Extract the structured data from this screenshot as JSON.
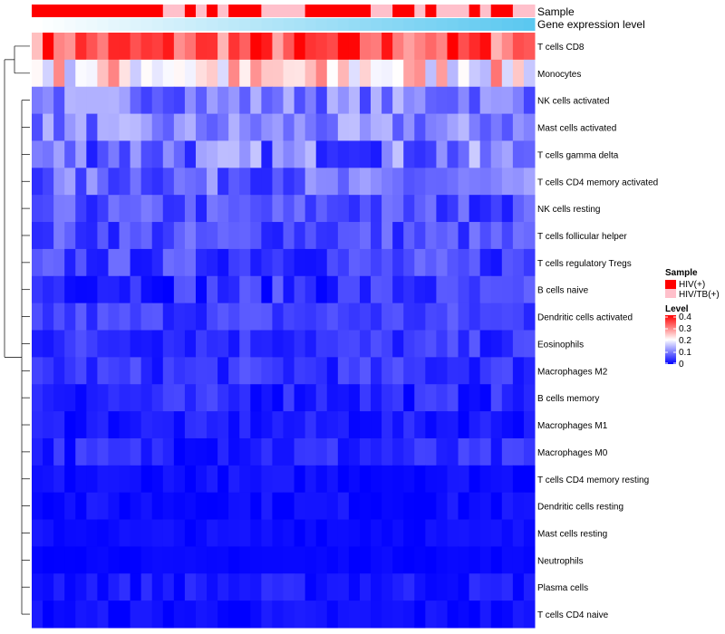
{
  "chart_data": {
    "type": "heatmap",
    "annotation_labels": [
      "Sample",
      "Gene expression level"
    ],
    "rows": [
      "T cells CD8",
      "Monocytes",
      "NK cells activated",
      "Mast cells activated",
      "T cells gamma delta",
      "T cells CD4 memory activated",
      "NK cells resting",
      "T cells follicular helper",
      "T cells regulatory  Tregs",
      "B cells naive",
      "Dendritic cells activated",
      "Eosinophils",
      "Macrophages M2",
      "B cells memory",
      "Macrophages M1",
      "Macrophages M0",
      "T cells CD4 memory resting",
      "Dendritic cells resting",
      "Mast cells resting",
      "Neutrophils",
      "Plasma cells",
      "T cells CD4 naive"
    ],
    "n_columns": 46,
    "sample_groups": [
      "HIV(+)",
      "HIV(+)",
      "HIV(+)",
      "HIV(+)",
      "HIV(+)",
      "HIV(+)",
      "HIV(+)",
      "HIV(+)",
      "HIV(+)",
      "HIV(+)",
      "HIV(+)",
      "HIV(+)",
      "HIV/TB(+)",
      "HIV/TB(+)",
      "HIV(+)",
      "HIV/TB(+)",
      "HIV(+)",
      "HIV/TB(+)",
      "HIV(+)",
      "HIV(+)",
      "HIV(+)",
      "HIV/TB(+)",
      "HIV/TB(+)",
      "HIV/TB(+)",
      "HIV/TB(+)",
      "HIV(+)",
      "HIV(+)",
      "HIV(+)",
      "HIV(+)",
      "HIV(+)",
      "HIV(+)",
      "HIV/TB(+)",
      "HIV/TB(+)",
      "HIV(+)",
      "HIV(+)",
      "HIV/TB(+)",
      "HIV(+)",
      "HIV/TB(+)",
      "HIV/TB(+)",
      "HIV/TB(+)",
      "HIV(+)",
      "HIV/TB(+)",
      "HIV(+)",
      "HIV(+)",
      "HIV/TB(+)",
      "HIV/TB(+)"
    ],
    "sample_colors": {
      "HIV(+)": "#ff0000",
      "HIV/TB(+)": "#ffc0cb"
    },
    "expression_gradient": [
      "#ffffff",
      "#5bc8f0"
    ],
    "level_scale": {
      "min": 0,
      "max": 0.4,
      "colors": [
        "#0000ff",
        "#ffffff",
        "#ff0000"
      ]
    },
    "row_means": [
      0.33,
      0.22,
      0.1,
      0.1,
      0.09,
      0.08,
      0.06,
      0.06,
      0.05,
      0.04,
      0.05,
      0.04,
      0.04,
      0.03,
      0.02,
      0.03,
      0.01,
      0.01,
      0.01,
      0.005,
      0.02,
      0.01
    ],
    "row_spread": [
      0.08,
      0.09,
      0.05,
      0.05,
      0.07,
      0.05,
      0.04,
      0.04,
      0.04,
      0.04,
      0.03,
      0.03,
      0.03,
      0.03,
      0.02,
      0.03,
      0.015,
      0.015,
      0.01,
      0.005,
      0.02,
      0.015
    ],
    "seed": 7
  },
  "legend": {
    "sample_title": "Sample",
    "sample_items": [
      "HIV(+)",
      "HIV/TB(+)"
    ],
    "level_title": "Level",
    "level_ticks": [
      "0.4",
      "0.3",
      "0.2",
      "0.1",
      "0"
    ]
  }
}
